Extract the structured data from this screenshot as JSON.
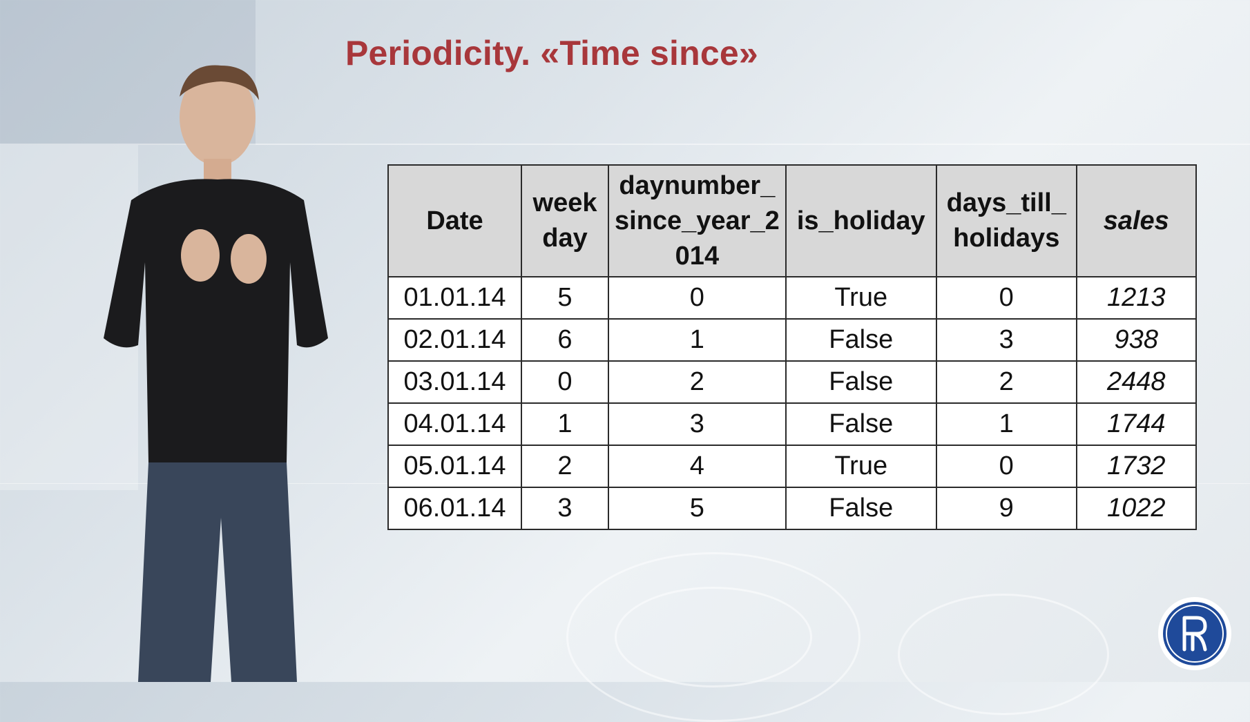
{
  "slide": {
    "title": "Periodicity. «Time since»"
  },
  "table": {
    "headers": [
      {
        "key": "date",
        "label": "Date"
      },
      {
        "key": "weekday",
        "label": "week day"
      },
      {
        "key": "daynumber",
        "label": "daynumber_ since_year_2 014"
      },
      {
        "key": "is_holiday",
        "label": "is_holiday"
      },
      {
        "key": "days_till",
        "label": "days_till_ holidays"
      },
      {
        "key": "sales",
        "label": "sales"
      }
    ],
    "rows": [
      [
        "01.01.14",
        "5",
        "0",
        "True",
        "0",
        "1213"
      ],
      [
        "02.01.14",
        "6",
        "1",
        "False",
        "3",
        "938"
      ],
      [
        "03.01.14",
        "0",
        "2",
        "False",
        "2",
        "2448"
      ],
      [
        "04.01.14",
        "1",
        "3",
        "False",
        "1",
        "1744"
      ],
      [
        "05.01.14",
        "2",
        "4",
        "True",
        "0",
        "1732"
      ],
      [
        "06.01.14",
        "3",
        "5",
        "False",
        "9",
        "1022"
      ]
    ]
  },
  "colors": {
    "title": "#a8373b",
    "header_bg": "#d8d8d8",
    "logo_blue": "#1f4a9a"
  },
  "icons": {
    "logo": "hse-university-logo"
  }
}
